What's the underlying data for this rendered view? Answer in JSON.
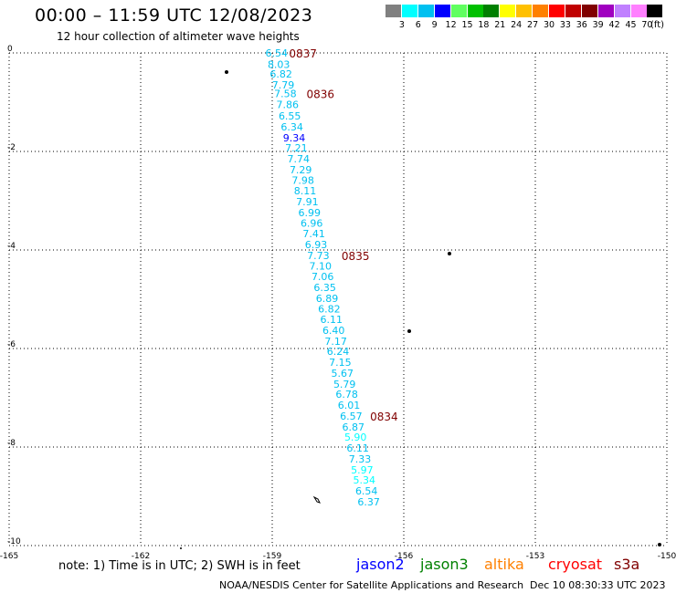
{
  "header": {
    "title": "00:00 – 11:59 UTC 12/08/2023",
    "subtitle": "12 hour collection of altimeter wave heights"
  },
  "color_scale": {
    "unit": "(ft)",
    "colors": [
      "#808080",
      "#00ffff",
      "#00c0f0",
      "#0000ff",
      "#60ff60",
      "#00c000",
      "#008000",
      "#ffff00",
      "#ffc000",
      "#ff8000",
      "#ff0000",
      "#c00000",
      "#800000",
      "#a000c0",
      "#c080ff",
      "#ff80ff",
      "#000000"
    ],
    "labels": [
      "3",
      "6",
      "9",
      "12",
      "15",
      "18",
      "21",
      "24",
      "27",
      "30",
      "33",
      "36",
      "39",
      "42",
      "45",
      "70"
    ]
  },
  "chart_data": {
    "type": "scatter",
    "title": "00:00 – 11:59 UTC 12/08/2023",
    "subtitle": "12 hour collection of altimeter wave heights",
    "xlabel": "",
    "ylabel": "",
    "xlim": [
      -165,
      -150
    ],
    "ylim": [
      -10,
      0
    ],
    "grid": true,
    "x_tick_labels": [
      "-165",
      "-162",
      "-159",
      "-156",
      "-153",
      "-150"
    ],
    "y_tick_labels": [
      "0",
      "-2",
      "-4",
      "-6",
      "-8",
      "-10"
    ],
    "x_ticks": [
      -165,
      -162,
      -159,
      -156,
      -153,
      -150
    ],
    "y_ticks": [
      0,
      -2,
      -4,
      -6,
      -8,
      -10
    ],
    "swh_track": [
      {
        "lon": -158.9,
        "lat": 0.0,
        "swh": "6.54",
        "color": "#00c0f0"
      },
      {
        "lon": -158.85,
        "lat": -0.23,
        "swh": "8.03",
        "color": "#00c0f0"
      },
      {
        "lon": -158.8,
        "lat": -0.43,
        "swh": "6.82",
        "color": "#00c0f0"
      },
      {
        "lon": -158.75,
        "lat": -0.65,
        "swh": "7.79",
        "color": "#00c0f0"
      },
      {
        "lon": -158.7,
        "lat": -0.82,
        "swh": "7.58",
        "color": "#00c0f0"
      },
      {
        "lon": -158.65,
        "lat": -1.05,
        "swh": "7.86",
        "color": "#00c0f0"
      },
      {
        "lon": -158.6,
        "lat": -1.28,
        "swh": "6.55",
        "color": "#00c0f0"
      },
      {
        "lon": -158.55,
        "lat": -1.5,
        "swh": "6.34",
        "color": "#00c0f0"
      },
      {
        "lon": -158.5,
        "lat": -1.72,
        "swh": "9.34",
        "color": "#0000ff"
      },
      {
        "lon": -158.45,
        "lat": -1.93,
        "swh": "7.21",
        "color": "#00c0f0"
      },
      {
        "lon": -158.4,
        "lat": -2.15,
        "swh": "7.74",
        "color": "#00c0f0"
      },
      {
        "lon": -158.35,
        "lat": -2.37,
        "swh": "7.29",
        "color": "#00c0f0"
      },
      {
        "lon": -158.3,
        "lat": -2.58,
        "swh": "7.98",
        "color": "#00c0f0"
      },
      {
        "lon": -158.25,
        "lat": -2.8,
        "swh": "8.11",
        "color": "#00c0f0"
      },
      {
        "lon": -158.2,
        "lat": -3.02,
        "swh": "7.91",
        "color": "#00c0f0"
      },
      {
        "lon": -158.15,
        "lat": -3.24,
        "swh": "6.99",
        "color": "#00c0f0"
      },
      {
        "lon": -158.1,
        "lat": -3.45,
        "swh": "6.96",
        "color": "#00c0f0"
      },
      {
        "lon": -158.05,
        "lat": -3.67,
        "swh": "7.41",
        "color": "#00c0f0"
      },
      {
        "lon": -158.0,
        "lat": -3.89,
        "swh": "6.93",
        "color": "#00c0f0"
      },
      {
        "lon": -157.95,
        "lat": -4.11,
        "swh": "7.73",
        "color": "#00c0f0"
      },
      {
        "lon": -157.9,
        "lat": -4.32,
        "swh": "7.10",
        "color": "#00c0f0"
      },
      {
        "lon": -157.85,
        "lat": -4.54,
        "swh": "7.06",
        "color": "#00c0f0"
      },
      {
        "lon": -157.8,
        "lat": -4.76,
        "swh": "6.35",
        "color": "#00c0f0"
      },
      {
        "lon": -157.75,
        "lat": -4.98,
        "swh": "6.89",
        "color": "#00c0f0"
      },
      {
        "lon": -157.7,
        "lat": -5.19,
        "swh": "6.82",
        "color": "#00c0f0"
      },
      {
        "lon": -157.65,
        "lat": -5.41,
        "swh": "6.11",
        "color": "#00c0f0"
      },
      {
        "lon": -157.6,
        "lat": -5.63,
        "swh": "6.40",
        "color": "#00c0f0"
      },
      {
        "lon": -157.55,
        "lat": -5.85,
        "swh": "7.17",
        "color": "#00c0f0"
      },
      {
        "lon": -157.5,
        "lat": -6.06,
        "swh": "6.24",
        "color": "#00c0f0"
      },
      {
        "lon": -157.45,
        "lat": -6.28,
        "swh": "7.15",
        "color": "#00c0f0"
      },
      {
        "lon": -157.4,
        "lat": -6.5,
        "swh": "5.67",
        "color": "#00c0f0"
      },
      {
        "lon": -157.35,
        "lat": -6.72,
        "swh": "5.79",
        "color": "#00c0f0"
      },
      {
        "lon": -157.3,
        "lat": -6.93,
        "swh": "6.78",
        "color": "#00c0f0"
      },
      {
        "lon": -157.25,
        "lat": -7.15,
        "swh": "6.01",
        "color": "#00c0f0"
      },
      {
        "lon": -157.2,
        "lat": -7.37,
        "swh": "6.57",
        "color": "#00c0f0"
      },
      {
        "lon": -157.15,
        "lat": -7.59,
        "swh": "6.87",
        "color": "#00c0f0"
      },
      {
        "lon": -157.1,
        "lat": -7.8,
        "swh": "5.90",
        "color": "#00ffff"
      },
      {
        "lon": -157.05,
        "lat": -8.02,
        "swh": "6.11",
        "color": "#00c0f0"
      },
      {
        "lon": -157.0,
        "lat": -8.24,
        "swh": "7.33",
        "color": "#00c0f0"
      },
      {
        "lon": -156.95,
        "lat": -8.46,
        "swh": "5.97",
        "color": "#00ffff"
      },
      {
        "lon": -156.9,
        "lat": -8.67,
        "swh": "5.34",
        "color": "#00ffff"
      },
      {
        "lon": -156.85,
        "lat": -8.89,
        "swh": "6.54",
        "color": "#00c0f0"
      },
      {
        "lon": -156.8,
        "lat": -9.11,
        "swh": "6.37",
        "color": "#00c0f0"
      }
    ],
    "time_labels": [
      {
        "lon": -158.3,
        "lat": 0.0,
        "text": "0837",
        "color": "#800000"
      },
      {
        "lon": -157.9,
        "lat": -0.82,
        "text": "0836",
        "color": "#800000"
      },
      {
        "lon": -157.1,
        "lat": -4.11,
        "text": "0835",
        "color": "#800000"
      },
      {
        "lon": -156.45,
        "lat": -7.37,
        "text": "0834",
        "color": "#800000"
      }
    ]
  },
  "footer": {
    "note": "note: 1) Time is in UTC; 2) SWH is in feet",
    "legend": [
      {
        "label": "jason2",
        "color": "#0000ff"
      },
      {
        "label": "jason3",
        "color": "#008000"
      },
      {
        "label": "altika",
        "color": "#ff8000"
      },
      {
        "label": "cryosat",
        "color": "#ff0000"
      },
      {
        "label": "s3a",
        "color": "#800000"
      }
    ],
    "credit": "NOAA/NESDIS Center for Satellite Applications and Research",
    "timestamp": "Dec 10 08:30:33 UTC 2023"
  }
}
